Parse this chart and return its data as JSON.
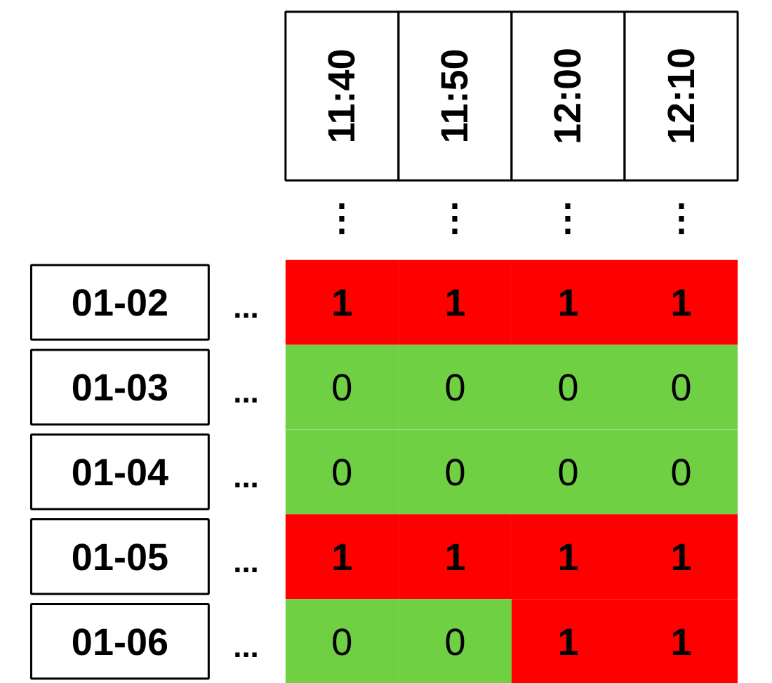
{
  "chart_data": {
    "type": "heatmap",
    "categories": [
      "11:40",
      "11:50",
      "12:00",
      "12:10"
    ],
    "y_categories": [
      "01-02",
      "01-03",
      "01-04",
      "01-05",
      "01-06"
    ],
    "cells": [
      [
        1,
        1,
        1,
        1
      ],
      [
        0,
        0,
        0,
        0
      ],
      [
        0,
        0,
        0,
        0
      ],
      [
        1,
        1,
        1,
        1
      ],
      [
        0,
        0,
        1,
        1
      ]
    ],
    "colors": [
      "#70d044",
      "#ff0000"
    ],
    "data_labels": true,
    "annotations": [
      "...",
      "⋮"
    ]
  }
}
